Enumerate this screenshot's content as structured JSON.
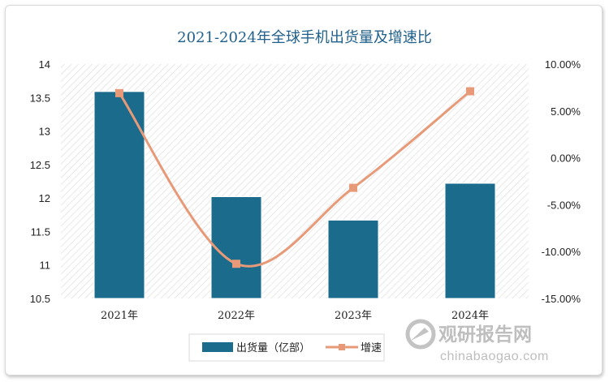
{
  "chart_data": {
    "type": "bar+line",
    "title": "2021-2024年全球手机出货量及增速比",
    "categories": [
      "2021年",
      "2022年",
      "2023年",
      "2024年"
    ],
    "series": [
      {
        "name": "出货量（亿部）",
        "type": "bar",
        "axis": "left",
        "values": [
          13.59,
          12.02,
          11.67,
          12.22
        ],
        "color": "#1b6b8c"
      },
      {
        "name": "增速",
        "type": "line",
        "axis": "right",
        "values": [
          6.9,
          -11.3,
          -3.2,
          7.1
        ],
        "color": "#e89a78"
      }
    ],
    "y_left": {
      "min": 10.5,
      "max": 14,
      "step": 0.5,
      "tick_labels": [
        "10.5",
        "11",
        "11.5",
        "12",
        "12.5",
        "13",
        "13.5",
        "14"
      ]
    },
    "y_right": {
      "min": -15,
      "max": 10,
      "step": 5,
      "tick_labels": [
        "-15.00%",
        "-10.00%",
        "-5.00%",
        "0.00%",
        "5.00%",
        "10.00%"
      ]
    },
    "grid": false,
    "plot_background": "diagonal-hatch",
    "legend_position": "bottom"
  },
  "watermark": {
    "cn": "观研报告网",
    "en": "chinabaogao.com"
  },
  "colors": {
    "title": "#1f5f8b",
    "bar": "#1b6b8c",
    "line": "#e89a78",
    "frame_border": "#d9d9d9"
  }
}
